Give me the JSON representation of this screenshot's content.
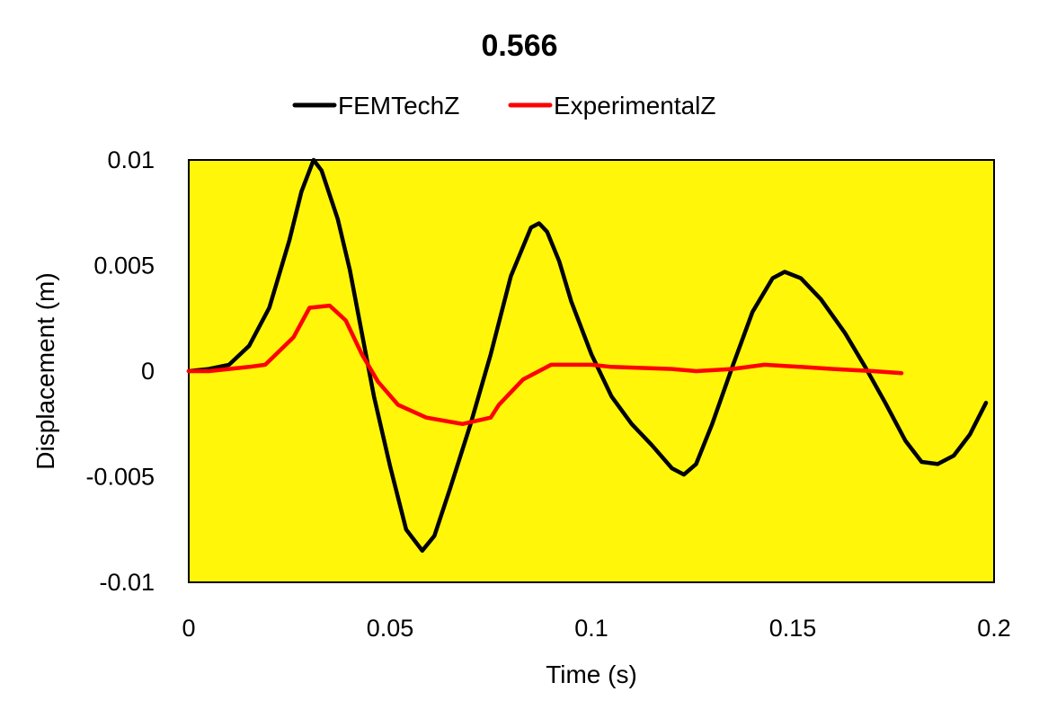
{
  "chart_data": {
    "type": "line",
    "title": "0.566",
    "xlabel": "Time (s)",
    "ylabel": "Displacement (m)",
    "xlim": [
      0,
      0.2
    ],
    "ylim": [
      -0.01,
      0.01
    ],
    "x_ticks": [
      "0",
      "0.05",
      "0.1",
      "0.15",
      "0.2"
    ],
    "y_ticks": [
      "0.01",
      "0.005",
      "0",
      "-0.005",
      "-0.01"
    ],
    "x_tick_values": [
      0,
      0.05,
      0.1,
      0.15,
      0.2
    ],
    "y_tick_values": [
      0.01,
      0.005,
      0,
      -0.005,
      -0.01
    ],
    "grid": false,
    "legend_position": "top",
    "plot_background": "#FFF60A",
    "series": [
      {
        "name": "FEMTechZ",
        "color": "#000000",
        "points": [
          [
            0,
            0
          ],
          [
            0.005,
            0.0001
          ],
          [
            0.01,
            0.0003
          ],
          [
            0.015,
            0.0012
          ],
          [
            0.02,
            0.003
          ],
          [
            0.025,
            0.0062
          ],
          [
            0.028,
            0.0085
          ],
          [
            0.031,
            0.01
          ],
          [
            0.033,
            0.0095
          ],
          [
            0.037,
            0.0072
          ],
          [
            0.04,
            0.0048
          ],
          [
            0.043,
            0.0018
          ],
          [
            0.046,
            -0.0012
          ],
          [
            0.05,
            -0.0045
          ],
          [
            0.054,
            -0.0075
          ],
          [
            0.058,
            -0.0085
          ],
          [
            0.061,
            -0.0078
          ],
          [
            0.065,
            -0.0055
          ],
          [
            0.07,
            -0.0025
          ],
          [
            0.075,
            0.0008
          ],
          [
            0.08,
            0.0045
          ],
          [
            0.085,
            0.0068
          ],
          [
            0.087,
            0.007
          ],
          [
            0.089,
            0.0066
          ],
          [
            0.092,
            0.0052
          ],
          [
            0.095,
            0.0033
          ],
          [
            0.1,
            0.0008
          ],
          [
            0.105,
            -0.0012
          ],
          [
            0.11,
            -0.0025
          ],
          [
            0.115,
            -0.0035
          ],
          [
            0.12,
            -0.0046
          ],
          [
            0.123,
            -0.0049
          ],
          [
            0.126,
            -0.0044
          ],
          [
            0.13,
            -0.0025
          ],
          [
            0.135,
            0.0002
          ],
          [
            0.14,
            0.0028
          ],
          [
            0.145,
            0.0044
          ],
          [
            0.148,
            0.0047
          ],
          [
            0.152,
            0.0044
          ],
          [
            0.157,
            0.0034
          ],
          [
            0.163,
            0.0018
          ],
          [
            0.168,
            0.0002
          ],
          [
            0.173,
            -0.0015
          ],
          [
            0.178,
            -0.0033
          ],
          [
            0.182,
            -0.0043
          ],
          [
            0.186,
            -0.0044
          ],
          [
            0.19,
            -0.004
          ],
          [
            0.194,
            -0.003
          ],
          [
            0.198,
            -0.0015
          ]
        ]
      },
      {
        "name": "ExperimentalZ",
        "color": "#FF0000",
        "points": [
          [
            0,
            0
          ],
          [
            0.005,
            0
          ],
          [
            0.01,
            0.0001
          ],
          [
            0.015,
            0.0002
          ],
          [
            0.019,
            0.0003
          ],
          [
            0.026,
            0.0016
          ],
          [
            0.03,
            0.003
          ],
          [
            0.035,
            0.0031
          ],
          [
            0.039,
            0.0024
          ],
          [
            0.043,
            0.0008
          ],
          [
            0.047,
            -0.0005
          ],
          [
            0.052,
            -0.0016
          ],
          [
            0.059,
            -0.0022
          ],
          [
            0.068,
            -0.0025
          ],
          [
            0.075,
            -0.0022
          ],
          [
            0.077,
            -0.0016
          ],
          [
            0.083,
            -0.0004
          ],
          [
            0.09,
            0.0003
          ],
          [
            0.1,
            0.0003
          ],
          [
            0.105,
            0.0002
          ],
          [
            0.12,
            0.0001
          ],
          [
            0.126,
            0
          ],
          [
            0.135,
            0.0001
          ],
          [
            0.143,
            0.0003
          ],
          [
            0.152,
            0.0002
          ],
          [
            0.16,
            0.0001
          ],
          [
            0.17,
            0
          ],
          [
            0.177,
            -0.0001
          ]
        ]
      }
    ]
  }
}
